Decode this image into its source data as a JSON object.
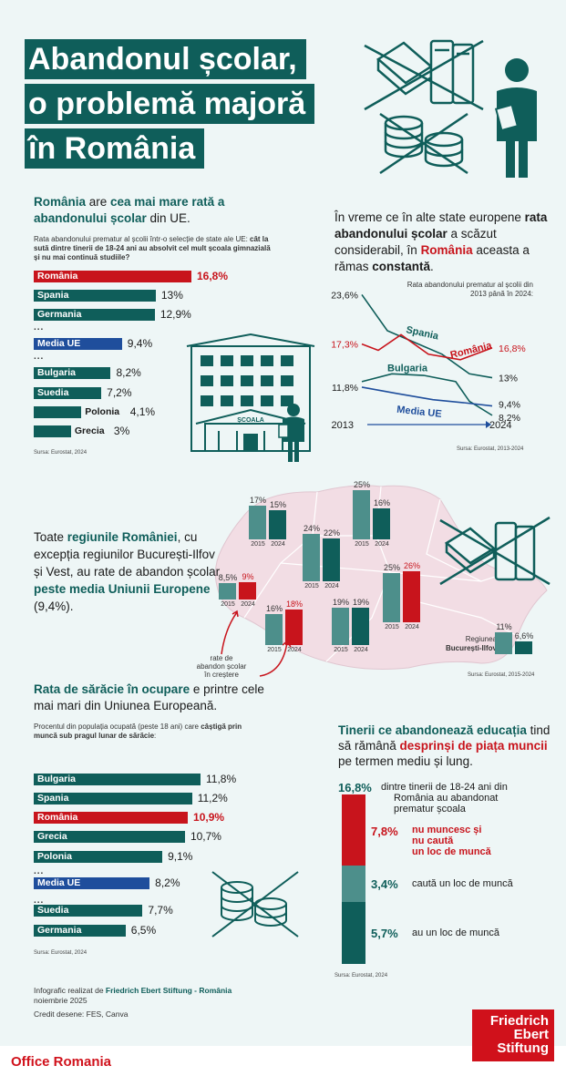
{
  "title": [
    "Abandonul școlar,",
    "o problemă majoră",
    "în România"
  ],
  "section1": {
    "heading_parts": [
      "România",
      " are ",
      "cea mai mare rată a abandonului școlar",
      " din UE."
    ],
    "sub_plain": "Rata abandonului prematur al școlii într-o selecție de state ale UE: ",
    "sub_bold": "cât la sută dintre tinerii de 18-24 ani au absolvit cel mult școala gimnazială și nu mai continuă studiile?",
    "source": "Sursa: Eurostat, 2024",
    "dots": "...",
    "school_sign": "ȘCOALA"
  },
  "section2": {
    "heading_parts": [
      "În vreme ce în alte state europene ",
      "rata abandonului școlar",
      " a scăzut considerabil, în ",
      "România",
      " aceasta a rămas ",
      "constantă",
      "."
    ],
    "chart_title": "Rata abandonului prematur al școlii din 2013 până în 2024:",
    "source": "Sursa: Eurostat, 2013-2024"
  },
  "section3": {
    "text_parts": [
      "Toate ",
      "regiunile României",
      ", cu excepția regiunilor București-Ilfov și Vest, au rate de abandon școlar ",
      "peste media Uniunii Europene",
      " (9,4%)."
    ],
    "annotation": [
      "rate de",
      "abandon școlar",
      "în creștere"
    ],
    "bi_label": [
      "Regiunea",
      "București-Ilfov"
    ],
    "source": "Sursa: Eurostat, 2015-2024"
  },
  "section4": {
    "heading_parts": [
      "Rata de sărăcie în ocupare",
      " e printre cele mai mari din Uniunea Europeană."
    ],
    "sub_plain": "Procentul din populația ocupată (peste 18 ani) care ",
    "sub_bold": "câștigă prin muncă sub pragul lunar de sărăcie",
    "sub_end": ":",
    "source": "Sursa: Eurostat, 2024"
  },
  "section5": {
    "heading_parts": [
      "Tinerii ce abandonează educația",
      " tind să rămână ",
      "desprinși de piața muncii",
      " pe termen mediu și lung."
    ],
    "source": "Sursa: Eurostat, 2024",
    "total_value": "16,8%",
    "total_text": [
      "dintre tinerii de 18-24 ani din",
      "România au abandonat",
      "prematur școala"
    ],
    "seg1_value": "7,8%",
    "seg1_text": [
      "nu muncesc și",
      "nu caută",
      "un loc de muncă"
    ],
    "seg2_value": "3,4%",
    "seg2_text": "caută un loc de muncă",
    "seg3_value": "5,7%",
    "seg3_text": "au un loc de muncă"
  },
  "credits": {
    "line1_plain": "Infografic realizat de ",
    "line1_bold": "Friedrich Ebert Stiftung - România",
    "line2": "noiembrie 2025",
    "line3": "Credit desene: FES, Canva"
  },
  "logo": [
    "Friedrich",
    "Ebert",
    "Stiftung"
  ],
  "office": "Office Romania",
  "colors": {
    "teal": "#0f5e5a",
    "red": "#c8141c",
    "blue": "#1f4e9c",
    "light_teal": "#4d8f8b",
    "bg": "#eef6f6",
    "map": "#f2dde4"
  },
  "chart_data": [
    {
      "type": "bar",
      "orientation": "horizontal",
      "categories": [
        "România",
        "Spania",
        "Germania",
        "Media UE",
        "Bulgaria",
        "Suedia",
        "Polonia",
        "Grecia"
      ],
      "values": [
        16.8,
        13,
        12.9,
        9.4,
        8.2,
        7.2,
        4.1,
        3
      ],
      "labels": [
        "16,8%",
        "13%",
        "12,9%",
        "9,4%",
        "8,2%",
        "7,2%",
        "4,1%",
        "3%"
      ],
      "colors": [
        "#c8141c",
        "#0f5e5a",
        "#0f5e5a",
        "#1f4e9c",
        "#0f5e5a",
        "#0f5e5a",
        "#0f5e5a",
        "#0f5e5a"
      ]
    },
    {
      "type": "line",
      "x": [
        2013,
        2024
      ],
      "x_labels": [
        "2013",
        "2024"
      ],
      "series": [
        {
          "name": "Spania",
          "start": 23.6,
          "end": 13,
          "start_label": "23,6%",
          "end_label": "13%"
        },
        {
          "name": "România",
          "start": 17.3,
          "end": 16.8,
          "start_label": "17,3%",
          "end_label": "16,8%"
        },
        {
          "name": "Bulgaria",
          "start": 12.5,
          "end": 8.2,
          "start_label": "",
          "end_label": "8,2%"
        },
        {
          "name": "Media UE",
          "start": 11.8,
          "end": 9.4,
          "start_label": "11,8%",
          "end_label": "9,4%"
        }
      ]
    },
    {
      "type": "bar",
      "categories": [
        "2015",
        "2024"
      ],
      "regions": [
        {
          "values": [
            17,
            15
          ],
          "labels": [
            "17%",
            "15%"
          ]
        },
        {
          "values": [
            25,
            16
          ],
          "labels": [
            "25%",
            "16%"
          ]
        },
        {
          "values": [
            24,
            22
          ],
          "labels": [
            "24%",
            "22%"
          ]
        },
        {
          "values": [
            25,
            26
          ],
          "labels": [
            "25%",
            "26%"
          ]
        },
        {
          "values": [
            8.5,
            9
          ],
          "labels": [
            "8,5%",
            "9%"
          ]
        },
        {
          "values": [
            16,
            18
          ],
          "labels": [
            "16%",
            "18%"
          ]
        },
        {
          "values": [
            19,
            19
          ],
          "labels": [
            "19%",
            "19%"
          ]
        },
        {
          "values": [
            11,
            6.6
          ],
          "labels": [
            "11%",
            "6,6%"
          ],
          "name": "Regiunea București-Ilfov"
        }
      ]
    },
    {
      "type": "bar",
      "orientation": "horizontal",
      "categories": [
        "Bulgaria",
        "Spania",
        "România",
        "Grecia",
        "Polonia",
        "Media UE",
        "Suedia",
        "Germania"
      ],
      "values": [
        11.8,
        11.2,
        10.9,
        10.7,
        9.1,
        8.2,
        7.7,
        6.5
      ],
      "labels": [
        "11,8%",
        "11,2%",
        "10,9%",
        "10,7%",
        "9,1%",
        "8,2%",
        "7,7%",
        "6,5%"
      ],
      "colors": [
        "#0f5e5a",
        "#0f5e5a",
        "#c8141c",
        "#0f5e5a",
        "#0f5e5a",
        "#1f4e9c",
        "#0f5e5a",
        "#0f5e5a"
      ]
    },
    {
      "type": "bar",
      "stacked": true,
      "categories": [
        "nu muncesc și nu caută un loc de muncă",
        "caută un loc de muncă",
        "au un loc de muncă"
      ],
      "values": [
        7.8,
        3.4,
        5.7
      ],
      "total": 16.8
    }
  ]
}
